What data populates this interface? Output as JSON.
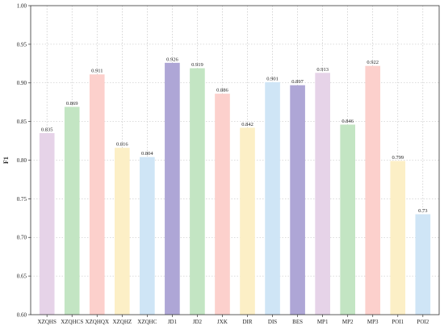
{
  "chart_data": {
    "type": "bar",
    "ylabel": "F1",
    "xlabel": "",
    "title": "",
    "ylim": [
      0.6,
      1.0
    ],
    "yticks": [
      0.6,
      0.65,
      0.7,
      0.75,
      0.8,
      0.85,
      0.9,
      0.95,
      1.0
    ],
    "ytick_labels": [
      "0.60",
      "0.65",
      "0.70",
      "0.75",
      "0.80",
      "0.85",
      "0.90",
      "0.95",
      "1.00"
    ],
    "grid": "dotted",
    "categories": [
      "XZQHS",
      "XZQHCS",
      "XZQHQX",
      "XZQHZ",
      "XZQHC",
      "JD1",
      "JD2",
      "JXK",
      "DIR",
      "DIS",
      "BES",
      "MP1",
      "MP2",
      "MP3",
      "POI1",
      "POI2"
    ],
    "values": [
      0.835,
      0.869,
      0.911,
      0.816,
      0.804,
      0.926,
      0.919,
      0.886,
      0.842,
      0.901,
      0.897,
      0.913,
      0.846,
      0.922,
      0.799,
      0.73
    ],
    "value_labels": [
      "0.835",
      "0.869",
      "0.911",
      "0.816",
      "0.804",
      "0.926",
      "0.919",
      "0.886",
      "0.842",
      "0.901",
      "0.897",
      "0.913",
      "0.846",
      "0.922",
      "0.799",
      "0.73"
    ],
    "colors": [
      "#e6d3e8",
      "#c3e5c3",
      "#fcd0cc",
      "#fcefc6",
      "#cfe5f6",
      "#aea6d6",
      "#c3e5c3",
      "#fcd0cc",
      "#fcefc6",
      "#cfe5f6",
      "#aea6d6",
      "#e6d3e8",
      "#c3e5c3",
      "#fcd0cc",
      "#fcefc6",
      "#cfe5f6"
    ]
  }
}
